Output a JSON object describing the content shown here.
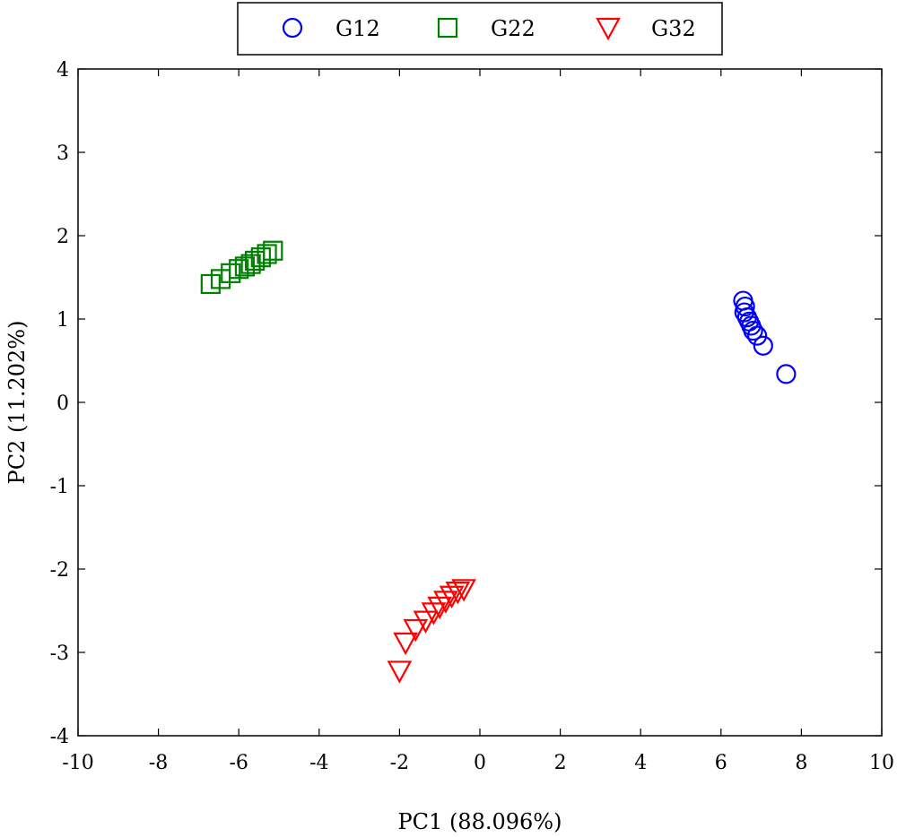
{
  "chart_data": {
    "type": "scatter",
    "title": "",
    "xlabel": "PC1 (88.096%)",
    "ylabel": "PC2 (11.202%)",
    "xlim": [
      -10,
      10
    ],
    "ylim": [
      -4,
      4
    ],
    "xticks": [
      -10,
      -8,
      -6,
      -4,
      -2,
      0,
      2,
      4,
      6,
      8,
      10
    ],
    "yticks": [
      -4,
      -3,
      -2,
      -1,
      0,
      1,
      2,
      3,
      4
    ],
    "grid": false,
    "legend": {
      "placement": "top-center",
      "boxed": true,
      "orientation": "horizontal"
    },
    "series": [
      {
        "name": "G12",
        "marker": "circle",
        "color": "#0000ff",
        "points": [
          [
            6.55,
            1.22
          ],
          [
            6.6,
            1.15
          ],
          [
            6.58,
            1.08
          ],
          [
            6.65,
            1.02
          ],
          [
            6.7,
            0.97
          ],
          [
            6.75,
            0.92
          ],
          [
            6.8,
            0.86
          ],
          [
            6.9,
            0.8
          ],
          [
            7.05,
            0.68
          ],
          [
            7.62,
            0.34
          ]
        ]
      },
      {
        "name": "G22",
        "marker": "square",
        "color": "#008000",
        "points": [
          [
            -6.7,
            1.42
          ],
          [
            -6.45,
            1.48
          ],
          [
            -6.2,
            1.55
          ],
          [
            -6.0,
            1.6
          ],
          [
            -5.85,
            1.63
          ],
          [
            -5.7,
            1.66
          ],
          [
            -5.6,
            1.7
          ],
          [
            -5.45,
            1.74
          ],
          [
            -5.3,
            1.78
          ],
          [
            -5.15,
            1.82
          ]
        ]
      },
      {
        "name": "G32",
        "marker": "triangle-down",
        "color": "#ff0000",
        "points": [
          [
            -2.0,
            -3.22
          ],
          [
            -1.85,
            -2.88
          ],
          [
            -1.6,
            -2.72
          ],
          [
            -1.35,
            -2.62
          ],
          [
            -1.15,
            -2.52
          ],
          [
            -1.0,
            -2.45
          ],
          [
            -0.85,
            -2.38
          ],
          [
            -0.7,
            -2.32
          ],
          [
            -0.55,
            -2.27
          ],
          [
            -0.4,
            -2.24
          ]
        ]
      }
    ]
  }
}
